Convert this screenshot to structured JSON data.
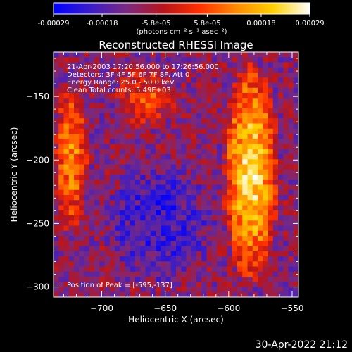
{
  "colors": {
    "background": "#000000",
    "foreground": "#ffffff",
    "colorbar_stops": [
      "#0000ff",
      "#3a1cc8",
      "#7a2a80",
      "#b8141a",
      "#ff3000",
      "#ff8c00",
      "#ffd000",
      "#ffffff"
    ]
  },
  "colorbar": {
    "ticks": [
      "-0.00029",
      "-0.00018",
      "-5.8e-05",
      "5.8e-05",
      "0.00018",
      "0.00029"
    ],
    "unit_label": "(photons cm⁻² s⁻¹ asec⁻²)",
    "range": [
      -0.00029,
      0.00029
    ]
  },
  "annotations": {
    "time": "21-Apr-2003 17:20:56.000 to 17:26:56.000",
    "detectors": "Detectors: 3F 4F 5F 6F 7F 8F, Att 0",
    "energy": "Energy Range: 25.0 - 50.0 keV",
    "clean": "Clean    Total counts: 5.49E+03",
    "peak": "Position of Peak = [-595,-137]"
  },
  "footer": {
    "timestamp": "30-Apr-2022 21:12"
  },
  "chart_data": {
    "type": "heatmap",
    "title": "Reconstructed RHESSI Image",
    "xlabel": "Heliocentric X (arcsec)",
    "ylabel": "Heliocentric Y (arcsec)",
    "xlim": [
      -738,
      -545
    ],
    "ylim": [
      -308,
      -115
    ],
    "xticks": [
      -700,
      -650,
      -600,
      -550
    ],
    "yticks": [
      -150,
      -200,
      -250,
      -300
    ],
    "xtick_labels": [
      "−700",
      "−650",
      "−600",
      "−550"
    ],
    "ytick_labels": [
      "−150",
      "−200",
      "−250",
      "−300"
    ],
    "grid": false,
    "peak_position": [
      -595,
      -137
    ],
    "features": [
      {
        "name": "bright arc",
        "x_range": [
          -605,
          -560
        ],
        "y_range": [
          -300,
          -120
        ],
        "level": "max"
      },
      {
        "name": "left edge emission",
        "x_range": [
          -738,
          -710
        ],
        "y_range": [
          -260,
          -135
        ],
        "level": "high"
      },
      {
        "name": "upper-centre emission",
        "x_range": [
          -690,
          -640
        ],
        "y_range": [
          -175,
          -125
        ],
        "level": "medium"
      },
      {
        "name": "central negative region",
        "x_range": [
          -700,
          -610
        ],
        "y_range": [
          -300,
          -200
        ],
        "level": "min"
      }
    ]
  }
}
